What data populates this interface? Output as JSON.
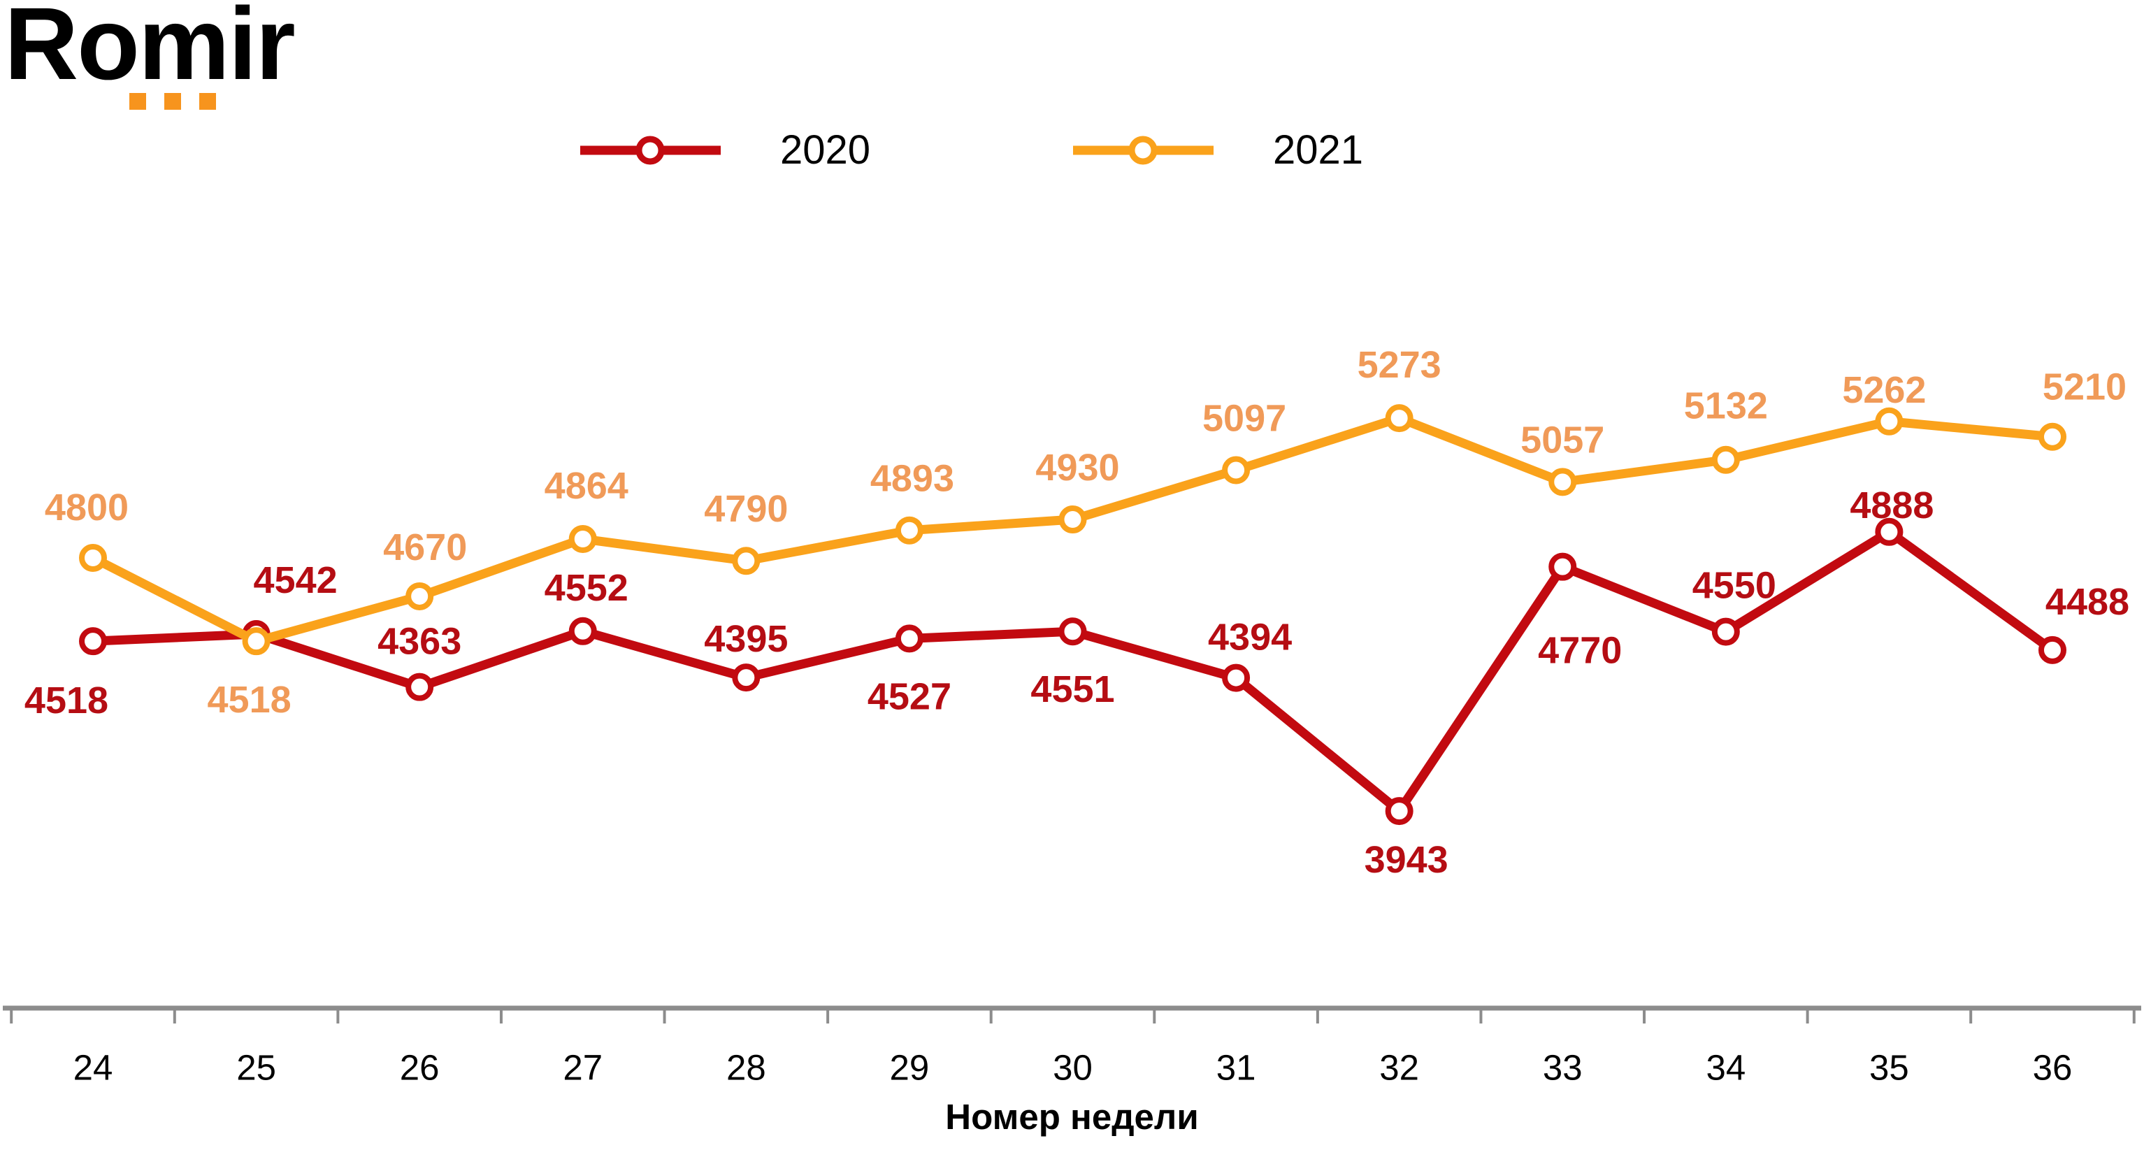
{
  "logo": {
    "text": "Romir",
    "dot_count": 3,
    "dot_color": "#F7941D"
  },
  "legend": {
    "items": [
      {
        "label": "2020",
        "color": "#C20A10"
      },
      {
        "label": "2021",
        "color": "#FAA21B"
      }
    ]
  },
  "chart_data": {
    "type": "line",
    "x": [
      24,
      25,
      26,
      27,
      28,
      29,
      30,
      31,
      32,
      33,
      34,
      35,
      36
    ],
    "xlabel": "Номер недели",
    "grid": false,
    "legend_position": "top-center",
    "background": "#FFFFFF",
    "axis_line_color": "#8C8C8C",
    "tick_color": "#8C8C8C",
    "tick_label_color": "#000000",
    "ylim": [
      3900,
      5350
    ],
    "series": [
      {
        "name": "2020",
        "color": "#C20A10",
        "label_color": "#B50D13",
        "marker": "open-circle",
        "values": [
          4518,
          4542,
          4363,
          4552,
          4395,
          4527,
          4551,
          4394,
          3943,
          4770,
          4550,
          4888,
          4488
        ],
        "label_side": [
          "below",
          "above",
          "above",
          "above",
          "above",
          "below",
          "below",
          "above",
          "below",
          "below",
          "above",
          "above",
          "above"
        ]
      },
      {
        "name": "2021",
        "color": "#FAA21B",
        "label_color": "#F09A58",
        "marker": "open-circle",
        "values": [
          4800,
          4518,
          4670,
          4864,
          4790,
          4893,
          4930,
          5097,
          5273,
          5057,
          5132,
          5262,
          5210
        ],
        "label_side": [
          "above",
          "below",
          "above",
          "above",
          "above",
          "above",
          "above",
          "above",
          "above",
          "above",
          "above",
          "above",
          "above"
        ]
      }
    ]
  }
}
